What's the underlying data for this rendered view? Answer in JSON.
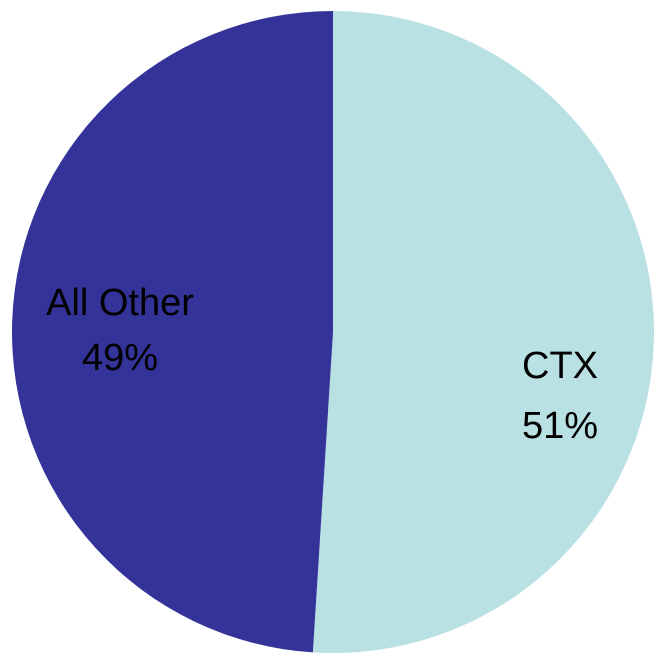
{
  "chart_data": {
    "type": "pie",
    "categories": [
      "CTX",
      "All Other"
    ],
    "values": [
      51,
      49
    ],
    "value_labels": [
      "51%",
      "49%"
    ],
    "colors": [
      "#b9e0e3",
      "#333399"
    ]
  }
}
